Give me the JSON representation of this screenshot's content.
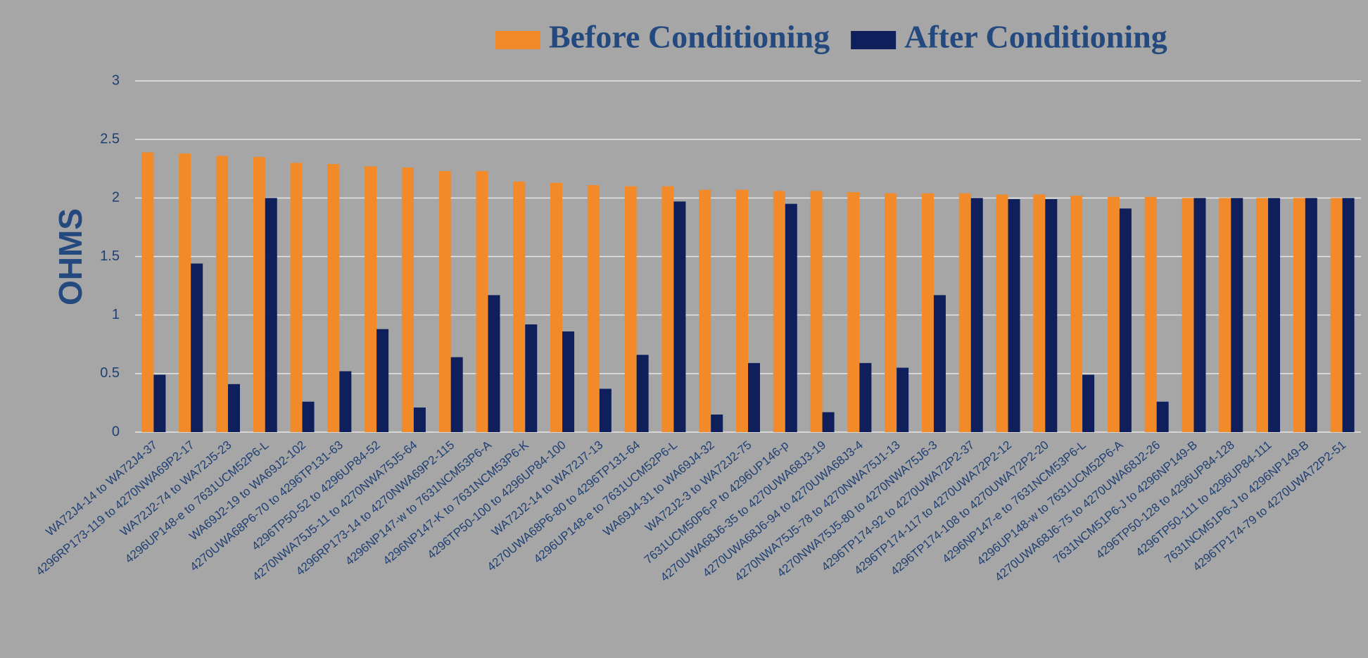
{
  "chart_data": {
    "type": "bar",
    "y_label": "OHMS",
    "categories": [
      "WA72J4-14 to WA72J4-37",
      "4296RP173-119 to 4270NWA69P2-17",
      "WA72J2-74 to WA72J5-23",
      "4296UP148-e to 7631UCM52P6-L",
      "WA69J2-19 to WA69J2-102",
      "4270UWA68P6-70 to 4296TP131-63",
      "4296TP50-52 to 4296UP84-52",
      "4270NWA75J5-11 to 4270NWA75J5-64",
      "4296RP173-14 to 4270NWA69P2-115",
      "4296NP147-w to 7631NCM53P6-A",
      "4296NP147-K to 7631NCM53P6-K",
      "4296TP50-100 to 4296UP84-100",
      "WA72J2-14 to WA72J7-13",
      "4270UWA68P6-80 to 4296TP131-64",
      "4296UP148-e to 7631UCM52P6-L",
      "WA69J4-31 to WA69J4-32",
      "WA72J2-3 to WA72J2-75",
      "7631UCM50P6-P to 4296UP146-p",
      "4270UWA68J6-35 to 4270UWA68J3-19",
      "4270UWA68J6-94 to 4270UWA68J3-4",
      "4270NWA75J5-78 to 4270NWA75J1-13",
      "4270NWA75J5-80 to 4270NWA75J6-3",
      "4296TP174-92 to 4270UWA72P2-37",
      "4296TP174-117 to 4270UWA72P2-12",
      "4296TP174-108 to 4270UWA72P2-20",
      "4296NP147-e to 7631NCM53P6-L",
      "4296UP148-w to 7631UCM52P6-A",
      "4270UWA68J6-75 to 4270UWA68J2-26",
      "7631NCM51P6-J to 4296NP149-B",
      "4296TP50-128 to 4296UP84-128",
      "4296TP50-111 to 4296UP84-111",
      "7631NCM51P6-J to 4296NP149-B",
      "4296TP174-79 to 4270UWA72P2-51"
    ],
    "series": [
      {
        "name": "Before Conditioning",
        "color": "#f28a2a",
        "values": [
          2.39,
          2.38,
          2.36,
          2.35,
          2.3,
          2.29,
          2.27,
          2.26,
          2.23,
          2.23,
          2.14,
          2.13,
          2.11,
          2.1,
          2.1,
          2.07,
          2.07,
          2.06,
          2.06,
          2.05,
          2.04,
          2.04,
          2.04,
          2.03,
          2.03,
          2.02,
          2.01,
          2.01,
          2.0,
          2.0,
          2.0,
          2.0,
          2.0
        ]
      },
      {
        "name": "After Conditioning",
        "color": "#0e1f5b",
        "values": [
          0.49,
          1.44,
          0.41,
          2.0,
          0.26,
          0.52,
          0.88,
          0.21,
          0.64,
          1.17,
          0.92,
          0.86,
          0.37,
          0.66,
          1.97,
          0.15,
          0.59,
          1.95,
          0.17,
          0.59,
          0.55,
          1.17,
          2.0,
          1.99,
          1.99,
          0.49,
          1.91,
          0.26,
          2.0,
          2.0,
          2.0,
          2.0,
          2.0
        ]
      }
    ],
    "ylim": [
      0,
      3
    ],
    "yticks": [
      0,
      0.5,
      1,
      1.5,
      2,
      2.5,
      3
    ],
    "grid": true,
    "legend": "top"
  }
}
